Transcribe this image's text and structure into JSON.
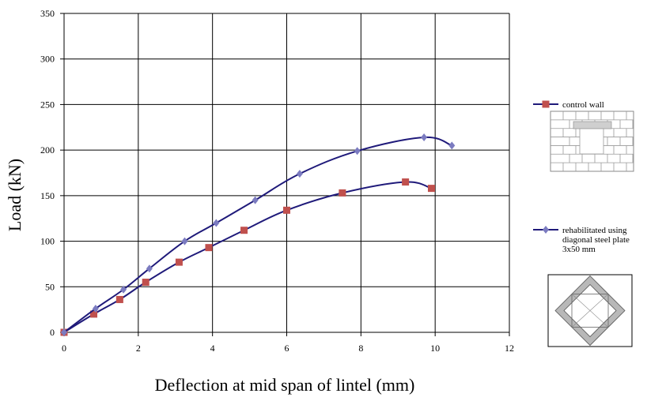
{
  "chart_data": {
    "type": "line",
    "title": "",
    "xlabel": "Deflection at mid span of lintel (mm)",
    "ylabel": "Load (kN)",
    "xlim": [
      0,
      12
    ],
    "ylim": [
      0,
      350
    ],
    "x_ticks": [
      0,
      2,
      4,
      6,
      8,
      10,
      12
    ],
    "y_ticks": [
      0,
      50,
      100,
      150,
      200,
      250,
      300,
      350
    ],
    "grid": true,
    "legend_position": "right",
    "series": [
      {
        "name": "control wall",
        "color": "#c0504d",
        "line_color": "#1f1a7a",
        "marker": "square",
        "points": [
          [
            0,
            0
          ],
          [
            0.8,
            20
          ],
          [
            1.5,
            36
          ],
          [
            2.2,
            55
          ],
          [
            3.1,
            77
          ],
          [
            3.9,
            93
          ],
          [
            4.85,
            112
          ],
          [
            6.0,
            134
          ],
          [
            7.5,
            153
          ],
          [
            9.2,
            165
          ],
          [
            9.9,
            158
          ]
        ]
      },
      {
        "name": "rehabilitated using diagonal steel plate 3x50 mm",
        "name_lines": [
          "rehabilitated using",
          "diagonal steel plate",
          "3x50 mm"
        ],
        "color": "#7b7bc0",
        "line_color": "#1f1a7a",
        "marker": "diamond",
        "points": [
          [
            0,
            0
          ],
          [
            0.85,
            26
          ],
          [
            1.6,
            47
          ],
          [
            2.3,
            70
          ],
          [
            3.25,
            100
          ],
          [
            4.1,
            120
          ],
          [
            5.15,
            145
          ],
          [
            6.35,
            174
          ],
          [
            7.9,
            199
          ],
          [
            9.7,
            214
          ],
          [
            10.45,
            205
          ]
        ]
      }
    ]
  },
  "icons": {
    "control_wall": "brick-wall-with-opening-icon",
    "rehabilitated": "diagonal-steel-plate-icon"
  }
}
